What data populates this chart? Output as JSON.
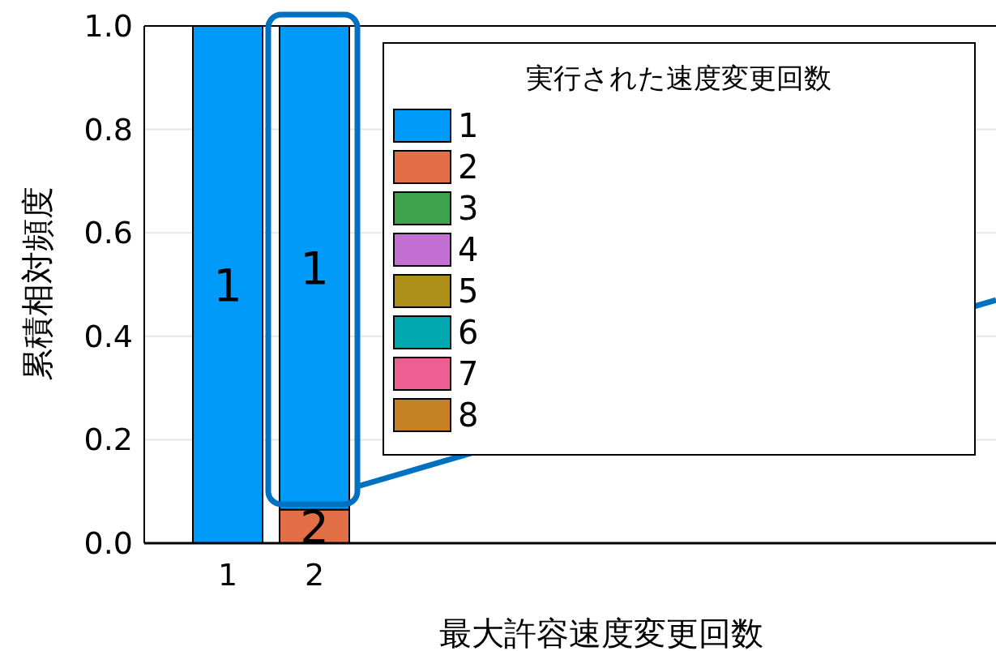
{
  "chart_data": {
    "type": "bar",
    "stacked": true,
    "xlabel": "最大許容速度変更回数",
    "ylabel": "累積相対頻度",
    "legend_title": "実行された速度変更回数",
    "categories": [
      "1",
      "2"
    ],
    "series": [
      {
        "name": "1",
        "color": "#009af9",
        "values": [
          1.0,
          0.935
        ]
      },
      {
        "name": "2",
        "color": "#e26f46",
        "values": [
          0,
          0.065
        ]
      },
      {
        "name": "3",
        "color": "#3da44d",
        "values": [
          0,
          0
        ]
      },
      {
        "name": "4",
        "color": "#c270d2",
        "values": [
          0,
          0
        ]
      },
      {
        "name": "5",
        "color": "#ac8e18",
        "values": [
          0,
          0
        ]
      },
      {
        "name": "6",
        "color": "#00a9ad",
        "values": [
          0,
          0
        ]
      },
      {
        "name": "7",
        "color": "#ed5e93",
        "values": [
          0,
          0
        ]
      },
      {
        "name": "8",
        "color": "#c68125",
        "values": [
          0,
          0
        ]
      }
    ],
    "ylim": [
      0,
      1.0
    ],
    "yticks": [
      {
        "value": 0,
        "label": "0.0"
      },
      {
        "value": 0.2,
        "label": "0.2"
      },
      {
        "value": 0.4,
        "label": "0.4"
      },
      {
        "value": 0.6,
        "label": "0.6"
      },
      {
        "value": 0.8,
        "label": "0.8"
      },
      {
        "value": 1.0,
        "label": "1.0"
      }
    ],
    "annotations": [
      "1",
      "1",
      "2"
    ],
    "grid": "y",
    "legend": "top right"
  }
}
